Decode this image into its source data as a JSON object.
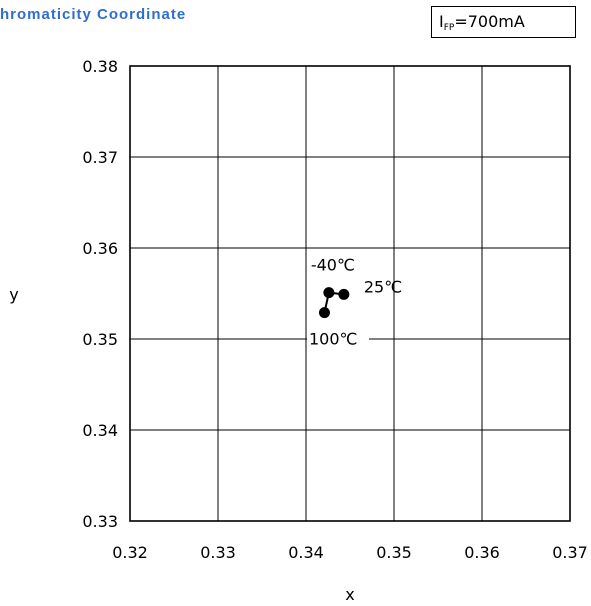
{
  "title": "hromaticity Coordinate",
  "condition": {
    "symbol": "I",
    "subscript": "FP",
    "value": "=700mA"
  },
  "chart_data": {
    "type": "scatter",
    "title": "hromaticity Coordinate",
    "xlabel": "x",
    "ylabel": "y",
    "xlim": [
      0.32,
      0.37
    ],
    "ylim": [
      0.33,
      0.38
    ],
    "xticks": [
      "0.32",
      "0.33",
      "0.34",
      "0.35",
      "0.36",
      "0.37"
    ],
    "yticks": [
      "0.33",
      "0.34",
      "0.35",
      "0.36",
      "0.37",
      "0.38"
    ],
    "grid": true,
    "series": [
      {
        "points": [
          {
            "label": "-40℃",
            "x": 0.3426,
            "y": 0.3551
          },
          {
            "label": "25℃",
            "x": 0.3443,
            "y": 0.3549
          },
          {
            "label": "100℃",
            "x": 0.3421,
            "y": 0.3529
          }
        ],
        "connected": true,
        "color": "#000000"
      }
    ]
  }
}
